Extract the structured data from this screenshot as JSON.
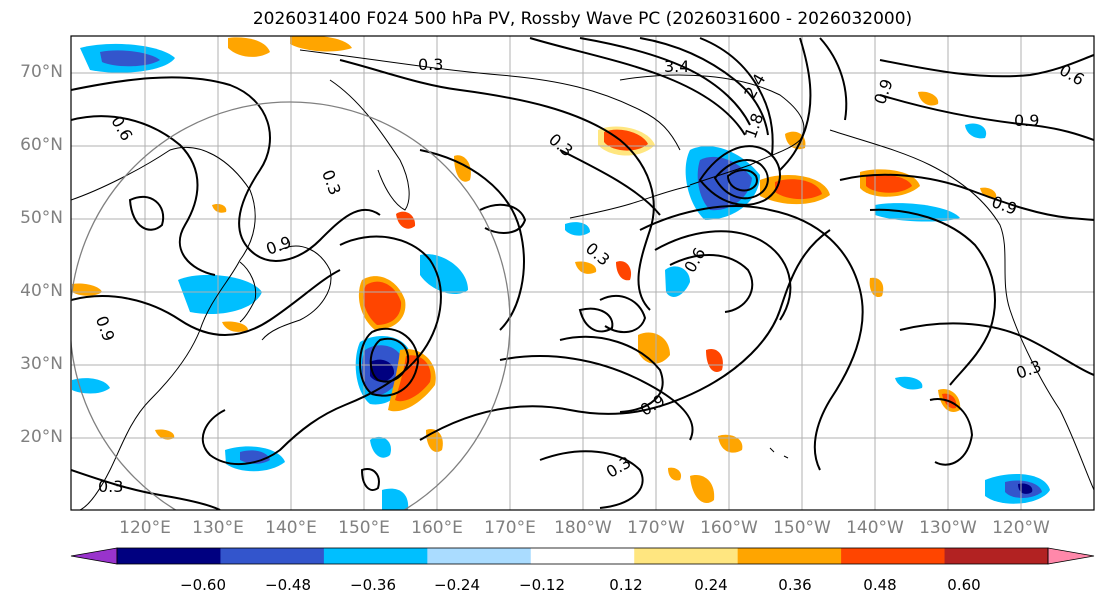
{
  "title": "2026031400 F024 500 hPa PV, Rossby Wave PC (2026031600 - 2026032000)",
  "lat_labels": [
    "70°N",
    "60°N",
    "50°N",
    "40°N",
    "30°N",
    "20°N"
  ],
  "lon_labels": [
    "120°E",
    "130°E",
    "140°E",
    "150°E",
    "160°E",
    "170°E",
    "180°W",
    "170°W",
    "160°W",
    "150°W",
    "140°W",
    "130°W",
    "120°W"
  ],
  "colorbar": {
    "ticks": [
      "−0.60",
      "−0.48",
      "−0.36",
      "−0.24",
      "−0.12",
      "0.12",
      "0.24",
      "0.36",
      "0.48",
      "0.60"
    ],
    "colors": [
      "#9933cc",
      "#000080",
      "#3355cc",
      "#00bfff",
      "#aadcff",
      "#ffffff",
      "#ffe680",
      "#ffa500",
      "#ff4500",
      "#b22222",
      "#ff88aa"
    ]
  },
  "contour_labels": [
    "0.3",
    "0.3",
    "0.3",
    "0.3",
    "0.3",
    "0.3",
    "0.3",
    "0.9",
    "0.9",
    "0.9",
    "0.9",
    "0.9",
    "1.8",
    "2.4",
    "3.4",
    "0.6",
    "0.6",
    "0.6",
    "0.9"
  ],
  "colors": {
    "contour": "#000000",
    "grid": "#b0b0b0",
    "circle": "#808080",
    "coast": "#000000"
  }
}
